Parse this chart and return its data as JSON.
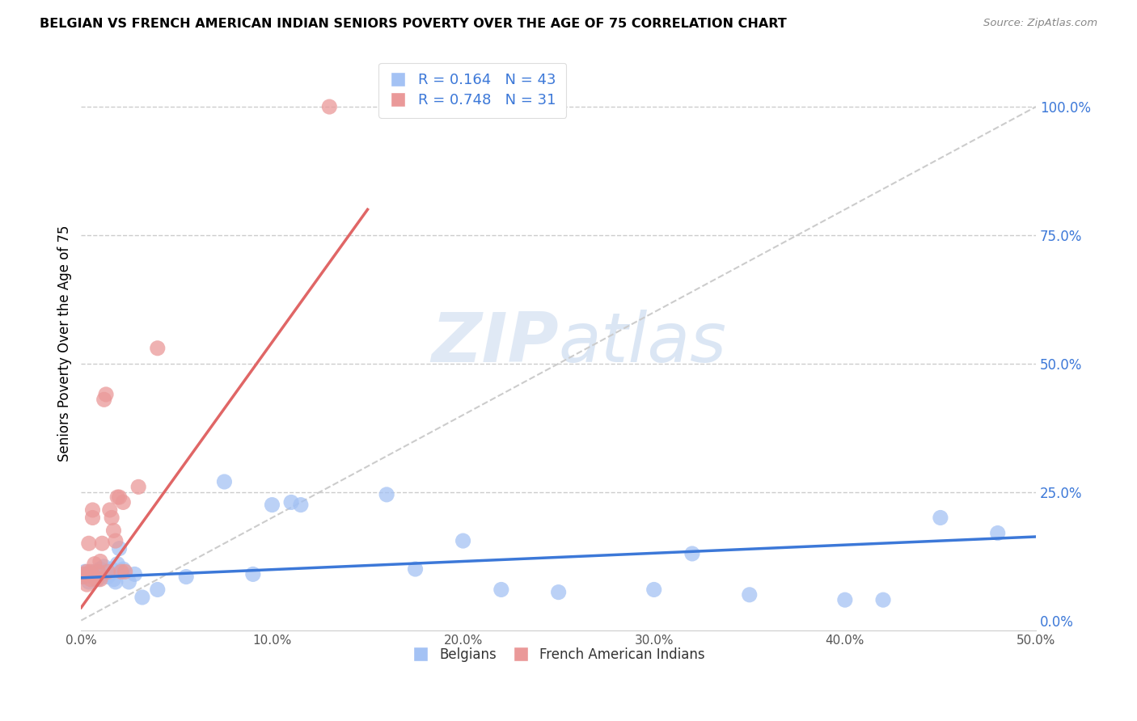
{
  "title": "BELGIAN VS FRENCH AMERICAN INDIAN SENIORS POVERTY OVER THE AGE OF 75 CORRELATION CHART",
  "source": "Source: ZipAtlas.com",
  "ylabel": "Seniors Poverty Over the Age of 75",
  "xlim": [
    0.0,
    0.5
  ],
  "ylim": [
    -0.02,
    1.1
  ],
  "legend_R1": "R = 0.164",
  "legend_N1": "N = 43",
  "legend_R2": "R = 0.748",
  "legend_N2": "N = 31",
  "blue_scatter": "#a4c2f4",
  "pink_scatter": "#ea9999",
  "blue_line": "#3c78d8",
  "pink_line": "#e06666",
  "right_axis_color": "#3c78d8",
  "belgian_x": [
    0.001,
    0.002,
    0.003,
    0.004,
    0.005,
    0.006,
    0.007,
    0.008,
    0.009,
    0.01,
    0.011,
    0.012,
    0.013,
    0.014,
    0.015,
    0.016,
    0.017,
    0.018,
    0.019,
    0.02,
    0.022,
    0.025,
    0.028,
    0.032,
    0.04,
    0.055,
    0.075,
    0.09,
    0.1,
    0.11,
    0.115,
    0.16,
    0.175,
    0.2,
    0.22,
    0.25,
    0.3,
    0.32,
    0.35,
    0.4,
    0.42,
    0.45,
    0.48
  ],
  "belgian_y": [
    0.09,
    0.095,
    0.085,
    0.075,
    0.09,
    0.085,
    0.095,
    0.09,
    0.08,
    0.1,
    0.09,
    0.105,
    0.095,
    0.085,
    0.09,
    0.1,
    0.08,
    0.075,
    0.11,
    0.14,
    0.1,
    0.075,
    0.09,
    0.045,
    0.06,
    0.085,
    0.27,
    0.09,
    0.225,
    0.23,
    0.225,
    0.245,
    0.1,
    0.155,
    0.06,
    0.055,
    0.06,
    0.13,
    0.05,
    0.04,
    0.04,
    0.2,
    0.17
  ],
  "french_x": [
    0.001,
    0.002,
    0.003,
    0.003,
    0.004,
    0.005,
    0.005,
    0.006,
    0.006,
    0.007,
    0.007,
    0.008,
    0.009,
    0.01,
    0.01,
    0.011,
    0.012,
    0.013,
    0.014,
    0.015,
    0.016,
    0.017,
    0.018,
    0.019,
    0.02,
    0.021,
    0.022,
    0.023,
    0.03,
    0.04,
    0.13
  ],
  "french_y": [
    0.085,
    0.09,
    0.07,
    0.095,
    0.15,
    0.095,
    0.08,
    0.2,
    0.215,
    0.085,
    0.11,
    0.08,
    0.095,
    0.08,
    0.115,
    0.15,
    0.43,
    0.44,
    0.095,
    0.215,
    0.2,
    0.175,
    0.155,
    0.24,
    0.24,
    0.095,
    0.23,
    0.095,
    0.26,
    0.53,
    1.0
  ],
  "blue_trend_x0": 0.0,
  "blue_trend_y0": 0.083,
  "blue_trend_x1": 0.5,
  "blue_trend_y1": 0.163,
  "pink_trend_x0": 0.0,
  "pink_trend_y0": 0.025,
  "pink_trend_x1": 0.15,
  "pink_trend_y1": 0.8
}
